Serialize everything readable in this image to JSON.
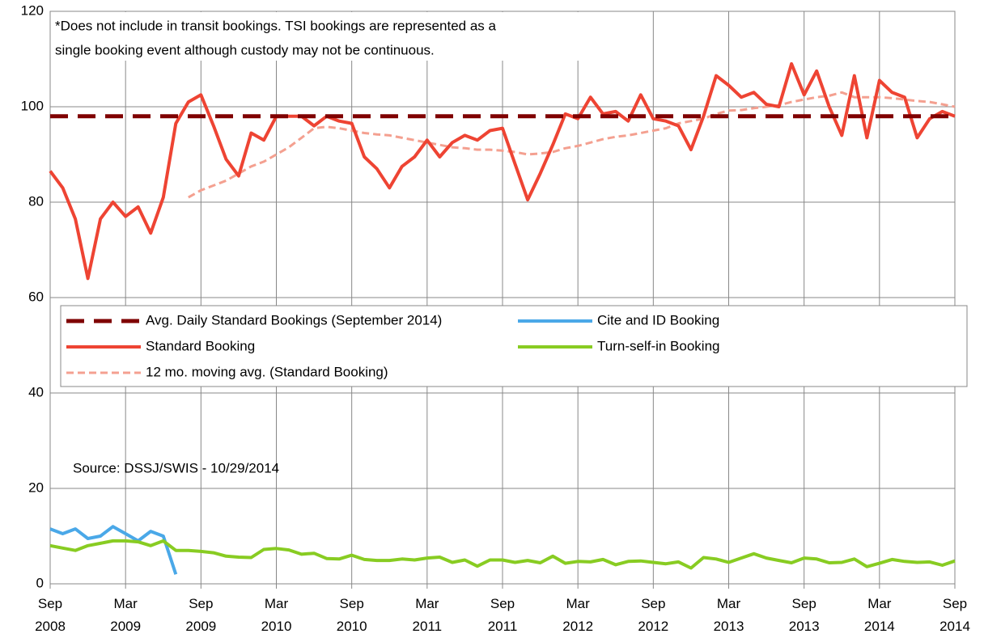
{
  "chart_data": {
    "type": "line",
    "x": [
      "2008-09",
      "2008-10",
      "2008-11",
      "2008-12",
      "2009-01",
      "2009-02",
      "2009-03",
      "2009-04",
      "2009-05",
      "2009-06",
      "2009-07",
      "2009-08",
      "2009-09",
      "2009-10",
      "2009-11",
      "2009-12",
      "2010-01",
      "2010-02",
      "2010-03",
      "2010-04",
      "2010-05",
      "2010-06",
      "2010-07",
      "2010-08",
      "2010-09",
      "2010-10",
      "2010-11",
      "2010-12",
      "2011-01",
      "2011-02",
      "2011-03",
      "2011-04",
      "2011-05",
      "2011-06",
      "2011-07",
      "2011-08",
      "2011-09",
      "2011-10",
      "2011-11",
      "2011-12",
      "2012-01",
      "2012-02",
      "2012-03",
      "2012-04",
      "2012-05",
      "2012-06",
      "2012-07",
      "2012-08",
      "2012-09",
      "2012-10",
      "2012-11",
      "2012-12",
      "2013-01",
      "2013-02",
      "2013-03",
      "2013-04",
      "2013-05",
      "2013-06",
      "2013-07",
      "2013-08",
      "2013-09",
      "2013-10",
      "2013-11",
      "2013-12",
      "2014-01",
      "2014-02",
      "2014-03",
      "2014-04",
      "2014-05",
      "2014-06",
      "2014-07",
      "2014-08",
      "2014-09"
    ],
    "xticks": [
      {
        "value": "2008-09",
        "label": "Sep 2008"
      },
      {
        "value": "2009-03",
        "label": "Mar 2009"
      },
      {
        "value": "2009-09",
        "label": "Sep 2009"
      },
      {
        "value": "2010-03",
        "label": "Mar 2010"
      },
      {
        "value": "2010-09",
        "label": "Sep 2010"
      },
      {
        "value": "2011-03",
        "label": "Mar 2011"
      },
      {
        "value": "2011-09",
        "label": "Sep 2011"
      },
      {
        "value": "2012-03",
        "label": "Mar 2012"
      },
      {
        "value": "2012-09",
        "label": "Sep 2012"
      },
      {
        "value": "2013-03",
        "label": "Mar 2013"
      },
      {
        "value": "2013-09",
        "label": "Sep 2013"
      },
      {
        "value": "2014-03",
        "label": "Mar 2014"
      },
      {
        "value": "2014-09",
        "label": "Sep 2014"
      }
    ],
    "ylim": [
      0,
      120
    ],
    "yticks": [
      0,
      20,
      40,
      60,
      80,
      100,
      120
    ],
    "grid": true,
    "annotations": [
      "*Does not include in transit bookings. TSI bookings are represented as a",
      "single booking event although custody may not be continuous.",
      "Source: DSSJ/SWIS - 10/29/2014"
    ],
    "series": [
      {
        "name": "Avg. Daily Standard Bookings (September 2014)",
        "color": "#7f0000",
        "linestyle": "dashed",
        "values": [
          98,
          98,
          98,
          98,
          98,
          98,
          98,
          98,
          98,
          98,
          98,
          98,
          98,
          98,
          98,
          98,
          98,
          98,
          98,
          98,
          98,
          98,
          98,
          98,
          98,
          98,
          98,
          98,
          98,
          98,
          98,
          98,
          98,
          98,
          98,
          98,
          98,
          98,
          98,
          98,
          98,
          98,
          98,
          98,
          98,
          98,
          98,
          98,
          98,
          98,
          98,
          98,
          98,
          98,
          98,
          98,
          98,
          98,
          98,
          98,
          98,
          98,
          98,
          98,
          98,
          98,
          98,
          98,
          98,
          98,
          98,
          98,
          98
        ]
      },
      {
        "name": "Cite and ID Booking",
        "color": "#4aa8e8",
        "linestyle": "solid",
        "values": [
          11.5,
          10.5,
          11.5,
          9.5,
          10,
          12,
          10.5,
          9,
          11,
          10,
          2,
          null,
          null,
          null,
          null,
          null,
          null,
          null,
          null,
          null,
          null,
          null,
          null,
          null,
          null,
          null,
          null,
          null,
          null,
          null,
          null,
          null,
          null,
          null,
          null,
          null,
          null,
          null,
          null,
          null,
          null,
          null,
          null,
          null,
          null,
          null,
          null,
          null,
          null,
          null,
          null,
          null,
          null,
          null,
          null,
          null,
          null,
          null,
          null,
          null,
          null,
          null,
          null,
          null,
          null,
          null,
          null,
          null,
          null,
          null,
          null,
          null,
          null
        ]
      },
      {
        "name": "Standard Booking",
        "color": "#ee4433",
        "linestyle": "solid",
        "values": [
          86.5,
          83,
          76.5,
          64,
          76.5,
          80,
          77,
          79,
          73.5,
          81,
          96.5,
          101,
          102.5,
          96,
          89,
          85.5,
          94.5,
          93,
          98,
          98,
          98,
          96,
          98,
          97,
          96.5,
          89.5,
          87,
          83,
          87.5,
          89.5,
          93,
          89.5,
          92.5,
          94,
          93,
          95,
          95.5,
          88,
          80.5,
          86,
          92,
          98.5,
          97.5,
          102,
          98.5,
          99,
          97,
          102.5,
          97.5,
          97,
          96,
          91,
          98,
          106.5,
          104.5,
          102,
          103,
          100.5,
          100,
          109,
          102.5,
          107.5,
          100,
          94,
          106.5,
          93.5,
          105.5,
          103,
          102,
          93.5,
          97.5,
          99,
          98
        ]
      },
      {
        "name": "Turn-self-in Booking",
        "color": "#88cc22",
        "linestyle": "solid",
        "values": [
          8,
          7.5,
          7,
          8,
          8.5,
          9,
          9,
          8.8,
          8,
          9,
          7,
          7,
          6.8,
          6.5,
          5.8,
          5.6,
          5.5,
          7.2,
          7.4,
          7.1,
          6.2,
          6.4,
          5.3,
          5.2,
          6,
          5.1,
          4.9,
          4.9,
          5.2,
          5,
          5.4,
          5.6,
          4.5,
          5,
          3.7,
          5,
          5,
          4.5,
          4.9,
          4.4,
          5.8,
          4.3,
          4.7,
          4.6,
          5.1,
          4,
          4.7,
          4.8,
          4.5,
          4.2,
          4.6,
          3.3,
          5.5,
          5.2,
          4.5,
          5.4,
          6.3,
          5.4,
          4.9,
          4.4,
          5.4,
          5.2,
          4.4,
          4.5,
          5.2,
          3.6,
          4.3,
          5.1,
          4.7,
          4.5,
          4.6,
          3.9,
          4.8
        ]
      },
      {
        "name": "12 mo. moving avg. (Standard Booking)",
        "color": "#f4a090",
        "linestyle": "dashed-thin",
        "values": [
          null,
          null,
          null,
          null,
          null,
          null,
          null,
          null,
          null,
          null,
          null,
          81,
          82.5,
          83.5,
          84.5,
          86,
          87.5,
          88.5,
          90,
          91.5,
          93.5,
          95.5,
          95.8,
          95.5,
          95,
          94.5,
          94.2,
          94,
          93.5,
          93,
          92.5,
          92,
          91.5,
          91.3,
          91,
          91,
          90.8,
          90.5,
          90,
          90.2,
          90.5,
          91.3,
          91.8,
          92.5,
          93.2,
          93.7,
          94,
          94.5,
          95,
          95.5,
          96.5,
          97,
          97.5,
          98.5,
          99.2,
          99.3,
          99.7,
          100,
          100.3,
          101,
          101.5,
          102,
          102.3,
          103,
          102,
          102,
          102,
          101.8,
          101.5,
          101.2,
          101,
          100.5,
          100
        ]
      }
    ]
  }
}
